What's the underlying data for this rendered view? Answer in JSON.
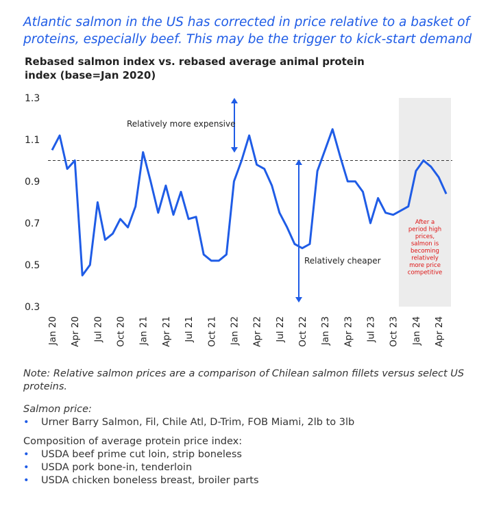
{
  "headline": [
    "Atlantic salmon in the US has corrected in price relative to a basket of",
    "proteins, especially beef.  This may be the trigger to kick-start demand"
  ],
  "chart_data": {
    "type": "line",
    "title": [
      "Rebased salmon index vs. rebased average animal protein",
      "index (base=Jan 2020)"
    ],
    "categories": [
      "Jan 20",
      null,
      null,
      "Apr 20",
      null,
      null,
      "Jul 20",
      null,
      null,
      "Oct 20",
      null,
      null,
      "Jan 21",
      null,
      null,
      "Apr 21",
      null,
      null,
      "Jul 21",
      null,
      null,
      "Oct 21",
      null,
      null,
      "Jan 22",
      null,
      null,
      "Apr 22",
      null,
      null,
      "Jul 22",
      null,
      null,
      "Oct 22",
      null,
      null,
      "Jan 23",
      null,
      null,
      "Apr 23",
      null,
      null,
      "Jul 23",
      null,
      null,
      "Oct 23",
      null,
      null,
      "Jan 24",
      null,
      null,
      "Apr 24",
      null
    ],
    "series": [
      {
        "name": "Rebased salmon index",
        "color": "#1f5ce6",
        "values": [
          1.05,
          1.12,
          0.96,
          1.0,
          0.45,
          0.5,
          0.8,
          0.62,
          0.65,
          0.72,
          0.68,
          0.78,
          1.04,
          0.9,
          0.75,
          0.88,
          0.74,
          0.85,
          0.72,
          0.73,
          0.55,
          0.52,
          0.52,
          0.55,
          0.9,
          1.0,
          1.12,
          0.98,
          0.96,
          0.88,
          0.75,
          0.68,
          0.6,
          0.58,
          0.6,
          0.95,
          1.05,
          1.15,
          1.02,
          0.9,
          0.9,
          0.85,
          0.7,
          0.82,
          0.75,
          0.74,
          0.76,
          0.78,
          0.95,
          1.0,
          0.97,
          0.92,
          0.84
        ]
      }
    ],
    "ylim": [
      0.3,
      1.3
    ],
    "yticks": [
      0.3,
      0.5,
      0.7,
      0.9,
      1.1,
      1.3
    ],
    "reference_line": 1,
    "annotations": {
      "expensive": "Relatively more expensive",
      "cheaper": "Relatively cheaper",
      "shaded_note": [
        "After a",
        "period high",
        "prices,",
        "salmon is",
        "becoming",
        "relatively",
        "more price",
        "competitive"
      ]
    }
  },
  "notes": {
    "note": [
      "Note: Relative salmon prices are a comparison of Chilean salmon fillets versus select US",
      "proteins."
    ],
    "salmon_heading": "Salmon price:",
    "salmon_items": [
      "Urner Barry Salmon, Fil, Chile Atl, D-Trim, FOB Miami, 2lb to 3lb"
    ],
    "composition_heading": "Composition of average protein price index:",
    "composition_items": [
      "USDA beef prime cut loin, strip boneless",
      "USDA pork bone-in, tenderloin",
      "USDA chicken boneless breast, broiler parts"
    ]
  }
}
